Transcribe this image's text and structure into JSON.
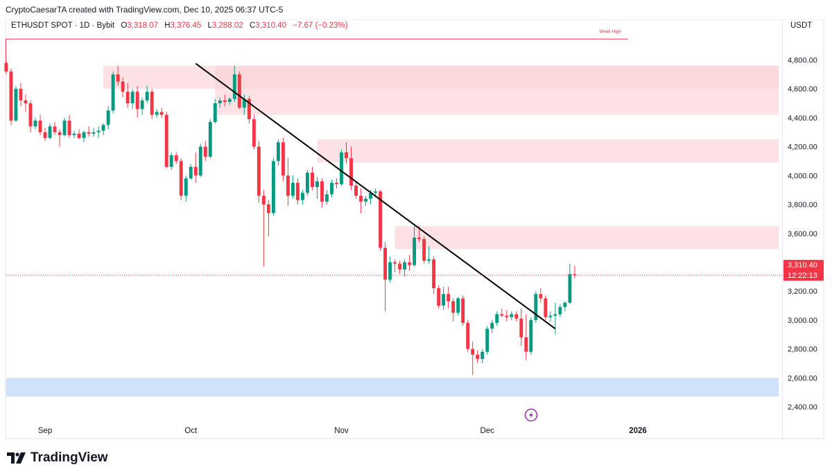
{
  "header": {
    "attribution": "CryptoCaesarTA created with TradingView.com, Dec 10, 2025 06:37 UTC-5"
  },
  "symbol": {
    "name": "ETHUSDT SPOT · 1D · Bybit",
    "open_label": "O",
    "open": "3,318.07",
    "high_label": "H",
    "high": "3,376.45",
    "low_label": "L",
    "low": "3,288.02",
    "close_label": "C",
    "close": "3,310.40",
    "change": "−7.67 (−0.23%)"
  },
  "currency": "USDT",
  "logo_text": "TradingView",
  "colors": {
    "up": "#089981",
    "down": "#f23645",
    "resistance_zone": "#fbd3d5",
    "support_zone": "#cfe0fb",
    "trendline": "#000000"
  },
  "chart_data": {
    "type": "candlestick",
    "ylim": [
      2350,
      4950
    ],
    "y_ticks": [
      "4,800.00",
      "4,600.00",
      "4,400.00",
      "4,200.00",
      "4,000.00",
      "3,800.00",
      "3,600.00",
      "3,400.00",
      "3,200.00",
      "3,000.00",
      "2,800.00",
      "2,600.00",
      "2,400.00"
    ],
    "x_ticks": [
      {
        "label": "Sep",
        "date": "2025-09-01"
      },
      {
        "label": "Oct",
        "date": "2025-10-01"
      },
      {
        "label": "Nov",
        "date": "2025-11-01"
      },
      {
        "label": "Dec",
        "date": "2025-12-01"
      },
      {
        "label": "2026",
        "date": "2026-01-01"
      }
    ],
    "date_range": [
      "2025-08-24",
      "2026-01-30"
    ],
    "last_price": {
      "value": "3,310.40",
      "countdown": "12:22:13",
      "price": 3310.4
    },
    "weak_high": {
      "label": "Weak High",
      "price": 4945,
      "from": "2025-08-24",
      "to": "2025-12-30"
    },
    "zones": [
      {
        "kind": "resistance",
        "from": "2025-09-13",
        "to": "2026-01-30",
        "top": 4760,
        "bottom": 4600
      },
      {
        "kind": "resistance",
        "from": "2025-10-06",
        "to": "2026-01-30",
        "top": 4760,
        "bottom": 4420
      },
      {
        "kind": "resistance",
        "from": "2025-10-27",
        "to": "2026-01-30",
        "top": 4250,
        "bottom": 4090
      },
      {
        "kind": "resistance",
        "from": "2025-11-12",
        "to": "2026-01-30",
        "top": 3650,
        "bottom": 3490
      },
      {
        "kind": "support",
        "from": "2025-08-24",
        "to": "2026-01-30",
        "top": 2600,
        "bottom": 2470
      }
    ],
    "trendline": {
      "start": {
        "date": "2025-10-02",
        "price": 4775
      },
      "end": {
        "date": "2025-12-15",
        "price": 2940
      }
    },
    "candles": [
      [
        "2025-08-24",
        4780,
        4800,
        4700,
        4720
      ],
      [
        "2025-08-25",
        4720,
        4740,
        4350,
        4380
      ],
      [
        "2025-08-26",
        4380,
        4620,
        4370,
        4600
      ],
      [
        "2025-08-27",
        4600,
        4640,
        4480,
        4520
      ],
      [
        "2025-08-28",
        4520,
        4560,
        4440,
        4500
      ],
      [
        "2025-08-29",
        4500,
        4520,
        4300,
        4340
      ],
      [
        "2025-08-30",
        4340,
        4400,
        4320,
        4380
      ],
      [
        "2025-08-31",
        4380,
        4420,
        4280,
        4300
      ],
      [
        "2025-09-01",
        4300,
        4330,
        4240,
        4260
      ],
      [
        "2025-09-02",
        4260,
        4360,
        4250,
        4340
      ],
      [
        "2025-09-03",
        4340,
        4370,
        4280,
        4300
      ],
      [
        "2025-09-04",
        4300,
        4320,
        4200,
        4280
      ],
      [
        "2025-09-05",
        4280,
        4400,
        4270,
        4380
      ],
      [
        "2025-09-06",
        4380,
        4420,
        4260,
        4280
      ],
      [
        "2025-09-07",
        4280,
        4310,
        4260,
        4290
      ],
      [
        "2025-09-08",
        4290,
        4320,
        4250,
        4260
      ],
      [
        "2025-09-09",
        4260,
        4310,
        4230,
        4300
      ],
      [
        "2025-09-10",
        4300,
        4340,
        4270,
        4290
      ],
      [
        "2025-09-11",
        4290,
        4330,
        4270,
        4300
      ],
      [
        "2025-09-12",
        4300,
        4340,
        4260,
        4310
      ],
      [
        "2025-09-13",
        4310,
        4360,
        4280,
        4350
      ],
      [
        "2025-09-14",
        4350,
        4480,
        4320,
        4450
      ],
      [
        "2025-09-15",
        4450,
        4720,
        4430,
        4700
      ],
      [
        "2025-09-16",
        4700,
        4760,
        4620,
        4650
      ],
      [
        "2025-09-17",
        4650,
        4680,
        4540,
        4580
      ],
      [
        "2025-09-18",
        4580,
        4640,
        4470,
        4500
      ],
      [
        "2025-09-19",
        4500,
        4600,
        4460,
        4580
      ],
      [
        "2025-09-20",
        4580,
        4620,
        4400,
        4460
      ],
      [
        "2025-09-21",
        4460,
        4540,
        4420,
        4520
      ],
      [
        "2025-09-22",
        4520,
        4620,
        4500,
        4580
      ],
      [
        "2025-09-23",
        4580,
        4600,
        4390,
        4420
      ],
      [
        "2025-09-24",
        4420,
        4460,
        4400,
        4440
      ],
      [
        "2025-09-25",
        4440,
        4470,
        4400,
        4420
      ],
      [
        "2025-09-26",
        4420,
        4440,
        4050,
        4060
      ],
      [
        "2025-09-27",
        4060,
        4160,
        4040,
        4140
      ],
      [
        "2025-09-28",
        4140,
        4160,
        4080,
        4100
      ],
      [
        "2025-09-29",
        4100,
        4120,
        3830,
        3860
      ],
      [
        "2025-09-30",
        3860,
        4000,
        3820,
        3980
      ],
      [
        "2025-10-01",
        3980,
        4080,
        3970,
        4060
      ],
      [
        "2025-10-02",
        4060,
        4160,
        3950,
        4000
      ],
      [
        "2025-10-03",
        4000,
        4220,
        3990,
        4200
      ],
      [
        "2025-10-04",
        4200,
        4240,
        4100,
        4130
      ],
      [
        "2025-10-05",
        4130,
        4390,
        4120,
        4370
      ],
      [
        "2025-10-06",
        4370,
        4530,
        4360,
        4500
      ],
      [
        "2025-10-07",
        4500,
        4540,
        4470,
        4520
      ],
      [
        "2025-10-08",
        4520,
        4560,
        4480,
        4510
      ],
      [
        "2025-10-09",
        4510,
        4540,
        4490,
        4530
      ],
      [
        "2025-10-10",
        4530,
        4760,
        4510,
        4700
      ],
      [
        "2025-10-11",
        4700,
        4720,
        4460,
        4470
      ],
      [
        "2025-10-12",
        4470,
        4560,
        4420,
        4530
      ],
      [
        "2025-10-13",
        4530,
        4550,
        4360,
        4390
      ],
      [
        "2025-10-14",
        4390,
        4420,
        4180,
        4200
      ],
      [
        "2025-10-15",
        4200,
        4240,
        3810,
        3860
      ],
      [
        "2025-10-16",
        3860,
        3900,
        3370,
        3800
      ],
      [
        "2025-10-17",
        3800,
        3830,
        3580,
        3740
      ],
      [
        "2025-10-18",
        3740,
        4120,
        3720,
        4100
      ],
      [
        "2025-10-19",
        4100,
        4250,
        4070,
        4230
      ],
      [
        "2025-10-20",
        4230,
        4260,
        3960,
        4000
      ],
      [
        "2025-10-21",
        4000,
        4120,
        3790,
        3860
      ],
      [
        "2025-10-22",
        3860,
        4000,
        3840,
        3950
      ],
      [
        "2025-10-23",
        3950,
        3980,
        3800,
        3830
      ],
      [
        "2025-10-24",
        3830,
        3900,
        3800,
        3880
      ],
      [
        "2025-10-25",
        3880,
        4040,
        3860,
        4020
      ],
      [
        "2025-10-26",
        4020,
        4060,
        3900,
        3920
      ],
      [
        "2025-10-27",
        3920,
        3990,
        3840,
        3960
      ],
      [
        "2025-10-28",
        3960,
        3980,
        3780,
        3820
      ],
      [
        "2025-10-29",
        3820,
        3900,
        3800,
        3870
      ],
      [
        "2025-10-30",
        3870,
        3970,
        3850,
        3950
      ],
      [
        "2025-10-31",
        3950,
        3980,
        3910,
        3940
      ],
      [
        "2025-11-01",
        3940,
        4180,
        3930,
        4160
      ],
      [
        "2025-11-02",
        4160,
        4230,
        4080,
        4120
      ],
      [
        "2025-11-03",
        4120,
        4200,
        3900,
        3930
      ],
      [
        "2025-11-04",
        3930,
        3960,
        3840,
        3860
      ],
      [
        "2025-11-05",
        3860,
        3910,
        3740,
        3820
      ],
      [
        "2025-11-06",
        3820,
        3860,
        3790,
        3840
      ],
      [
        "2025-11-07",
        3840,
        3900,
        3800,
        3880
      ],
      [
        "2025-11-08",
        3880,
        3910,
        3850,
        3890
      ],
      [
        "2025-11-09",
        3890,
        3900,
        3480,
        3500
      ],
      [
        "2025-11-10",
        3500,
        3540,
        3060,
        3280
      ],
      [
        "2025-11-11",
        3280,
        3440,
        3260,
        3400
      ],
      [
        "2025-11-12",
        3400,
        3420,
        3330,
        3390
      ],
      [
        "2025-11-13",
        3390,
        3410,
        3320,
        3350
      ],
      [
        "2025-11-14",
        3350,
        3420,
        3300,
        3400
      ],
      [
        "2025-11-15",
        3400,
        3450,
        3340,
        3380
      ],
      [
        "2025-11-16",
        3380,
        3650,
        3370,
        3570
      ],
      [
        "2025-11-17",
        3570,
        3650,
        3540,
        3560
      ],
      [
        "2025-11-18",
        3560,
        3580,
        3390,
        3410
      ],
      [
        "2025-11-19",
        3410,
        3510,
        3390,
        3420
      ],
      [
        "2025-11-20",
        3420,
        3440,
        3180,
        3220
      ],
      [
        "2025-11-21",
        3220,
        3240,
        3080,
        3100
      ],
      [
        "2025-11-22",
        3100,
        3230,
        3070,
        3180
      ],
      [
        "2025-11-23",
        3180,
        3230,
        3080,
        3130
      ],
      [
        "2025-11-24",
        3130,
        3150,
        2990,
        3050
      ],
      [
        "2025-11-25",
        3050,
        3160,
        3030,
        3150
      ],
      [
        "2025-11-26",
        3150,
        3170,
        2960,
        2980
      ],
      [
        "2025-11-27",
        2980,
        3000,
        2780,
        2800
      ],
      [
        "2025-11-28",
        2800,
        2850,
        2620,
        2760
      ],
      [
        "2025-11-29",
        2760,
        2790,
        2700,
        2730
      ],
      [
        "2025-11-30",
        2730,
        2800,
        2700,
        2780
      ],
      [
        "2025-12-01",
        2780,
        2960,
        2760,
        2940
      ],
      [
        "2025-12-02",
        2940,
        3000,
        2910,
        2980
      ],
      [
        "2025-12-03",
        2980,
        3060,
        2960,
        3040
      ],
      [
        "2025-12-04",
        3040,
        3080,
        3020,
        3030
      ],
      [
        "2025-12-05",
        3030,
        3070,
        2990,
        3020
      ],
      [
        "2025-12-06",
        3020,
        3060,
        3000,
        3040
      ],
      [
        "2025-12-07",
        3040,
        3060,
        2990,
        3010
      ],
      [
        "2025-12-08",
        3010,
        3080,
        2820,
        2880
      ],
      [
        "2025-12-09",
        2880,
        3040,
        2720,
        2780
      ],
      [
        "2025-12-10",
        2780,
        3020,
        2760,
        3000
      ],
      [
        "2025-12-11",
        3000,
        3200,
        2980,
        3180
      ],
      [
        "2025-12-12",
        3180,
        3220,
        3120,
        3150
      ],
      [
        "2025-12-13",
        3150,
        3170,
        3000,
        3020
      ],
      [
        "2025-12-14",
        3020,
        3060,
        2990,
        3030
      ],
      [
        "2025-12-15",
        3030,
        3120,
        2900,
        3040
      ],
      [
        "2025-12-16",
        3040,
        3110,
        3020,
        3090
      ],
      [
        "2025-12-17",
        3090,
        3130,
        3060,
        3120
      ],
      [
        "2025-12-18",
        3120,
        3390,
        3110,
        3318
      ],
      [
        "2025-12-19",
        3318.07,
        3376.45,
        3288.02,
        3310.4
      ]
    ]
  }
}
